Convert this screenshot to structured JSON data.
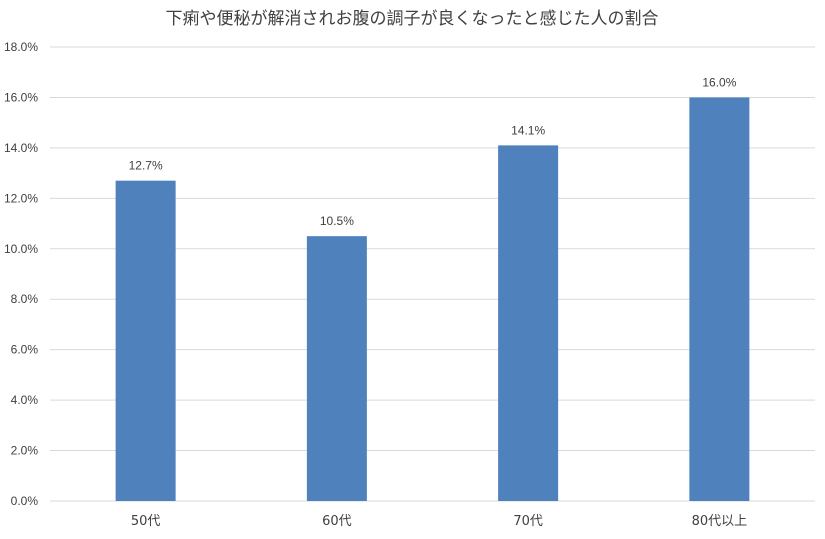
{
  "chart_data": {
    "type": "bar",
    "title": "下痢や便秘が解消されお腹の調子が良くなったと感じた人の割合",
    "xlabel": "",
    "ylabel": "",
    "categories": [
      "50代",
      "60代",
      "70代",
      "80代以上"
    ],
    "values": [
      12.7,
      10.5,
      14.1,
      16.0
    ],
    "data_labels": [
      "12.7%",
      "10.5%",
      "14.1%",
      "16.0%"
    ],
    "ylim": [
      0,
      18
    ],
    "y_ticks": [
      "0.0%",
      "2.0%",
      "4.0%",
      "6.0%",
      "8.0%",
      "10.0%",
      "12.0%",
      "14.0%",
      "16.0%",
      "18.0%"
    ],
    "grid": true,
    "legend": "none",
    "bar_color": "#4f81bd"
  }
}
